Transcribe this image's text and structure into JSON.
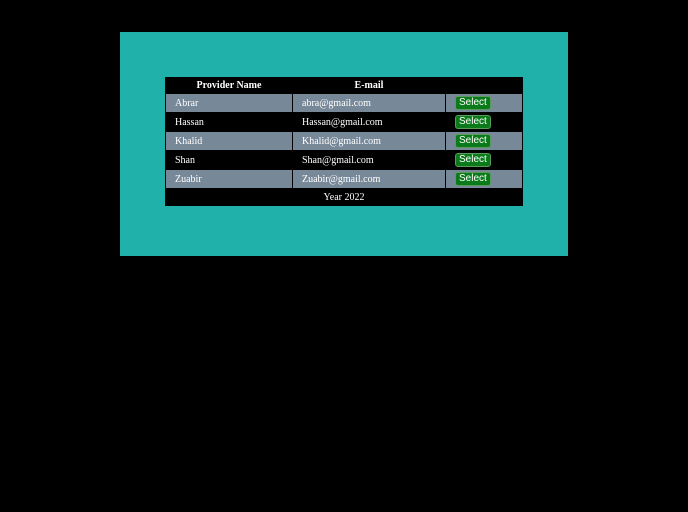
{
  "table": {
    "headers": [
      "Provider Name",
      "E-mail",
      ""
    ],
    "rows": [
      {
        "name": "Abrar",
        "email": "abra@gmail.com",
        "action": "Select"
      },
      {
        "name": "Hassan",
        "email": "Hassan@gmail.com",
        "action": "Select"
      },
      {
        "name": "Khalid",
        "email": "Khalid@gmail.com",
        "action": "Select"
      },
      {
        "name": "Shan",
        "email": "Shan@gmail.com",
        "action": "Select"
      },
      {
        "name": "Zuabir",
        "email": "Zuabir@gmail.com",
        "action": "Select"
      }
    ],
    "footer": "Year 2022"
  },
  "colors": {
    "panel": "#20b2aa",
    "odd_row": "#778899",
    "button": "#0a7a1a"
  }
}
